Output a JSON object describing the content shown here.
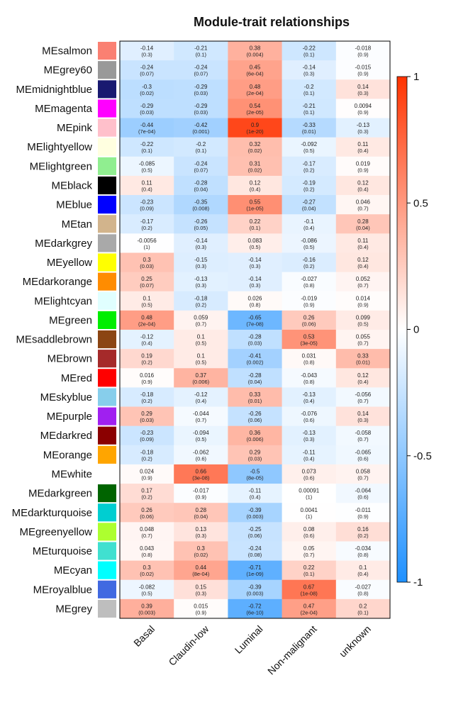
{
  "chart_data": {
    "type": "heatmap",
    "title": "Module-trait relationships",
    "columns": [
      "Basal",
      "Claudin-low",
      "Luminal",
      "Non-malignant",
      "unknown"
    ],
    "rows": [
      {
        "module": "MEsalmon",
        "color": "#FA8072",
        "values": [
          "-0.14",
          "-0.21",
          "0.38",
          "-0.22",
          "-0.018"
        ],
        "pvalues": [
          "(0.3)",
          "(0.1)",
          "(0.004)",
          "(0.1)",
          "(0.9)"
        ]
      },
      {
        "module": "MEgrey60",
        "color": "#999999",
        "values": [
          "-0.24",
          "-0.24",
          "0.45",
          "-0.14",
          "-0.015"
        ],
        "pvalues": [
          "(0.07)",
          "(0.07)",
          "(6e-04)",
          "(0.3)",
          "(0.9)"
        ]
      },
      {
        "module": "MEmidnightblue",
        "color": "#191970",
        "values": [
          "-0.3",
          "-0.29",
          "0.48",
          "-0.2",
          "0.14"
        ],
        "pvalues": [
          "(0.02)",
          "(0.03)",
          "(2e-04)",
          "(0.1)",
          "(0.3)"
        ]
      },
      {
        "module": "MEmagenta",
        "color": "#FF00FF",
        "values": [
          "-0.29",
          "-0.29",
          "0.54",
          "-0.21",
          "0.0094"
        ],
        "pvalues": [
          "(0.03)",
          "(0.03)",
          "(2e-05)",
          "(0.1)",
          "(0.9)"
        ]
      },
      {
        "module": "MEpink",
        "color": "#FFC0CB",
        "values": [
          "-0.44",
          "-0.42",
          "0.9",
          "-0.33",
          "-0.13"
        ],
        "pvalues": [
          "(7e-04)",
          "(0.001)",
          "(1e-20)",
          "(0.01)",
          "(0.3)"
        ]
      },
      {
        "module": "MElightyellow",
        "color": "#FFFFE0",
        "values": [
          "-0.22",
          "-0.2",
          "0.32",
          "-0.092",
          "0.11"
        ],
        "pvalues": [
          "(0.1)",
          "(0.1)",
          "(0.02)",
          "(0.5)",
          "(0.4)"
        ]
      },
      {
        "module": "MElightgreen",
        "color": "#90EE90",
        "values": [
          "-0.085",
          "-0.24",
          "0.31",
          "-0.17",
          "0.019"
        ],
        "pvalues": [
          "(0.5)",
          "(0.07)",
          "(0.02)",
          "(0.2)",
          "(0.9)"
        ]
      },
      {
        "module": "MEblack",
        "color": "#000000",
        "values": [
          "0.11",
          "-0.28",
          "0.12",
          "-0.19",
          "0.12"
        ],
        "pvalues": [
          "(0.4)",
          "(0.04)",
          "(0.4)",
          "(0.2)",
          "(0.4)"
        ]
      },
      {
        "module": "MEblue",
        "color": "#0000FF",
        "values": [
          "-0.23",
          "-0.35",
          "0.55",
          "-0.27",
          "0.046"
        ],
        "pvalues": [
          "(0.09)",
          "(0.008)",
          "(1e-05)",
          "(0.04)",
          "(0.7)"
        ]
      },
      {
        "module": "MEtan",
        "color": "#D2B48C",
        "values": [
          "-0.17",
          "-0.26",
          "0.22",
          "-0.1",
          "0.28"
        ],
        "pvalues": [
          "(0.2)",
          "(0.05)",
          "(0.1)",
          "(0.4)",
          "(0.04)"
        ]
      },
      {
        "module": "MEdarkgrey",
        "color": "#A9A9A9",
        "values": [
          "-0.0056",
          "-0.14",
          "0.083",
          "-0.086",
          "0.11"
        ],
        "pvalues": [
          "(1)",
          "(0.3)",
          "(0.5)",
          "(0.5)",
          "(0.4)"
        ]
      },
      {
        "module": "MEyellow",
        "color": "#FFFF00",
        "values": [
          "0.3",
          "-0.15",
          "-0.14",
          "-0.16",
          "0.12"
        ],
        "pvalues": [
          "(0.03)",
          "(0.3)",
          "(0.3)",
          "(0.2)",
          "(0.4)"
        ]
      },
      {
        "module": "MEdarkorange",
        "color": "#FF8C00",
        "values": [
          "0.25",
          "-0.13",
          "-0.14",
          "-0.027",
          "0.052"
        ],
        "pvalues": [
          "(0.07)",
          "(0.3)",
          "(0.3)",
          "(0.8)",
          "(0.7)"
        ]
      },
      {
        "module": "MElightcyan",
        "color": "#E0FFFF",
        "values": [
          "0.1",
          "-0.18",
          "0.026",
          "-0.019",
          "0.014"
        ],
        "pvalues": [
          "(0.5)",
          "(0.2)",
          "(0.8)",
          "(0.9)",
          "(0.9)"
        ]
      },
      {
        "module": "MEgreen",
        "color": "#00EE00",
        "values": [
          "0.48",
          "0.059",
          "-0.65",
          "0.26",
          "0.099"
        ],
        "pvalues": [
          "(2e-04)",
          "(0.7)",
          "(7e-08)",
          "(0.06)",
          "(0.5)"
        ]
      },
      {
        "module": "MEsaddlebrown",
        "color": "#8B4513",
        "values": [
          "-0.12",
          "0.1",
          "-0.28",
          "0.53",
          "0.055"
        ],
        "pvalues": [
          "(0.4)",
          "(0.5)",
          "(0.03)",
          "(3e-05)",
          "(0.7)"
        ]
      },
      {
        "module": "MEbrown",
        "color": "#A52A2A",
        "values": [
          "0.19",
          "0.1",
          "-0.41",
          "0.031",
          "0.33"
        ],
        "pvalues": [
          "(0.2)",
          "(0.5)",
          "(0.002)",
          "(0.8)",
          "(0.01)"
        ]
      },
      {
        "module": "MEred",
        "color": "#FF0000",
        "values": [
          "0.016",
          "0.37",
          "-0.28",
          "-0.043",
          "0.12"
        ],
        "pvalues": [
          "(0.9)",
          "(0.006)",
          "(0.04)",
          "(0.8)",
          "(0.4)"
        ]
      },
      {
        "module": "MEskyblue",
        "color": "#87CEEB",
        "values": [
          "-0.18",
          "-0.12",
          "0.33",
          "-0.13",
          "-0.056"
        ],
        "pvalues": [
          "(0.2)",
          "(0.4)",
          "(0.01)",
          "(0.4)",
          "(0.7)"
        ]
      },
      {
        "module": "MEpurple",
        "color": "#A020F0",
        "values": [
          "0.29",
          "-0.044",
          "-0.26",
          "-0.076",
          "0.14"
        ],
        "pvalues": [
          "(0.03)",
          "(0.7)",
          "(0.06)",
          "(0.6)",
          "(0.3)"
        ]
      },
      {
        "module": "MEdarkred",
        "color": "#8B0000",
        "values": [
          "-0.23",
          "-0.094",
          "0.36",
          "-0.13",
          "-0.058"
        ],
        "pvalues": [
          "(0.09)",
          "(0.5)",
          "(0.006)",
          "(0.3)",
          "(0.7)"
        ]
      },
      {
        "module": "MEorange",
        "color": "#FFA500",
        "values": [
          "-0.18",
          "-0.062",
          "0.29",
          "-0.11",
          "-0.065"
        ],
        "pvalues": [
          "(0.2)",
          "(0.6)",
          "(0.03)",
          "(0.4)",
          "(0.6)"
        ]
      },
      {
        "module": "MEwhite",
        "color": "#FFFFFF",
        "values": [
          "0.024",
          "0.66",
          "-0.5",
          "0.073",
          "0.058"
        ],
        "pvalues": [
          "(0.9)",
          "(3e-08)",
          "(8e-05)",
          "(0.6)",
          "(0.7)"
        ]
      },
      {
        "module": "MEdarkgreen",
        "color": "#006400",
        "values": [
          "0.17",
          "-0.017",
          "-0.11",
          "0.00091",
          "-0.064"
        ],
        "pvalues": [
          "(0.2)",
          "(0.9)",
          "(0.4)",
          "(1)",
          "(0.6)"
        ]
      },
      {
        "module": "MEdarkturquoise",
        "color": "#00CED1",
        "values": [
          "0.26",
          "0.28",
          "-0.39",
          "0.0041",
          "-0.011"
        ],
        "pvalues": [
          "(0.06)",
          "(0.04)",
          "(0.003)",
          "(1)",
          "(0.9)"
        ]
      },
      {
        "module": "MEgreenyellow",
        "color": "#ADFF2F",
        "values": [
          "0.048",
          "0.13",
          "-0.25",
          "0.08",
          "0.16"
        ],
        "pvalues": [
          "(0.7)",
          "(0.3)",
          "(0.06)",
          "(0.6)",
          "(0.2)"
        ]
      },
      {
        "module": "MEturquoise",
        "color": "#40E0D0",
        "values": [
          "0.043",
          "0.3",
          "-0.24",
          "0.05",
          "-0.034"
        ],
        "pvalues": [
          "(0.8)",
          "(0.02)",
          "(0.08)",
          "(0.7)",
          "(0.8)"
        ]
      },
      {
        "module": "MEcyan",
        "color": "#00FFFF",
        "values": [
          "0.3",
          "0.44",
          "-0.71",
          "0.22",
          "0.1"
        ],
        "pvalues": [
          "(0.02)",
          "(8e-04)",
          "(1e-09)",
          "(0.1)",
          "(0.4)"
        ]
      },
      {
        "module": "MEroyalblue",
        "color": "#4169E1",
        "values": [
          "-0.082",
          "0.15",
          "-0.39",
          "0.67",
          "-0.027"
        ],
        "pvalues": [
          "(0.5)",
          "(0.3)",
          "(0.003)",
          "(1e-08)",
          "(0.8)"
        ]
      },
      {
        "module": "MEgrey",
        "color": "#BEBEBE",
        "values": [
          "0.39",
          "0.015",
          "-0.72",
          "0.47",
          "0.2"
        ],
        "pvalues": [
          "(0.003)",
          "(0.9)",
          "(6e-10)",
          "(2e-04)",
          "(0.1)"
        ]
      }
    ],
    "color_scale": {
      "min": -1,
      "max": 1,
      "low_color": "#1E90FF",
      "mid_color": "#FFFFFF",
      "high_color": "#FF3300",
      "ticks": [
        "1",
        "0.5",
        "0",
        "-0.5",
        "-1"
      ]
    }
  }
}
